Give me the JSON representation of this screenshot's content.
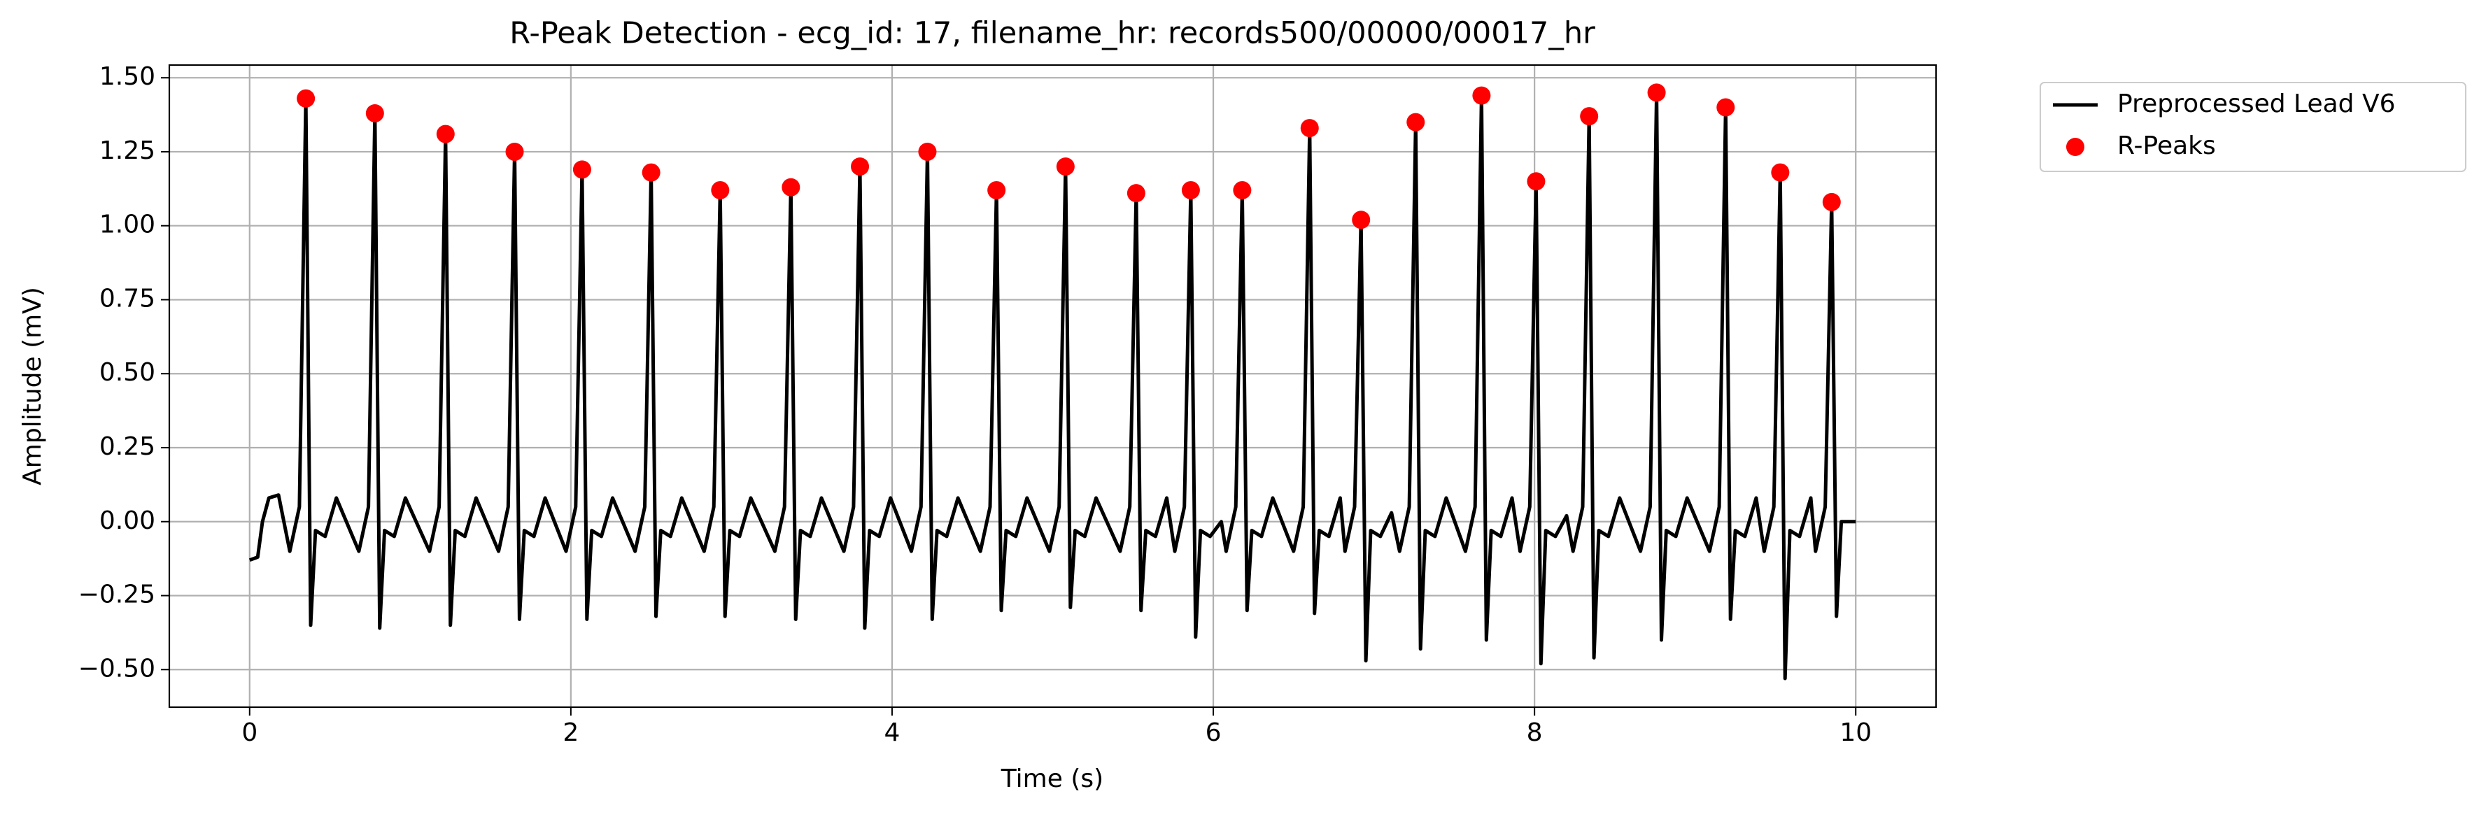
{
  "chart_data": {
    "type": "line",
    "title": "R-Peak Detection - ecg_id: 17, filename_hr: records500/00000/00017_hr",
    "xlabel": "Time (s)",
    "ylabel": "Amplitude (mV)",
    "xlim": [
      -0.5,
      10.5
    ],
    "ylim": [
      -0.627,
      1.543
    ],
    "xticks": [
      0,
      2,
      4,
      6,
      8,
      10
    ],
    "yticks": [
      {
        "value": -0.5,
        "label": "−0.50"
      },
      {
        "value": -0.25,
        "label": "−0.25"
      },
      {
        "value": 0,
        "label": "0.00"
      },
      {
        "value": 0.25,
        "label": "0.25"
      },
      {
        "value": 0.5,
        "label": "0.50"
      },
      {
        "value": 0.75,
        "label": "0.75"
      },
      {
        "value": 1,
        "label": "1.00"
      },
      {
        "value": 1.25,
        "label": "1.25"
      },
      {
        "value": 1.5,
        "label": "1.50"
      }
    ],
    "grid": true,
    "legend": "outside right",
    "series": [
      {
        "name": "Preprocessed Lead V6",
        "color": "#000000",
        "type": "line",
        "x": [
          0,
          0.05,
          0.08,
          0.12,
          0.18,
          0.25,
          0.31,
          0.35,
          0.38,
          0.41,
          0.47,
          0.54,
          0.68,
          0.74,
          0.78,
          0.81,
          0.84,
          0.9,
          0.97,
          1.12,
          1.18,
          1.22,
          1.25,
          1.28,
          1.34,
          1.41,
          1.55,
          1.61,
          1.65,
          1.68,
          1.71,
          1.77,
          1.84,
          1.97,
          2.03,
          2.07,
          2.1,
          2.13,
          2.19,
          2.26,
          2.4,
          2.46,
          2.5,
          2.53,
          2.56,
          2.62,
          2.69,
          2.83,
          2.89,
          2.93,
          2.96,
          2.99,
          3.05,
          3.12,
          3.27,
          3.33,
          3.37,
          3.4,
          3.43,
          3.49,
          3.56,
          3.7,
          3.76,
          3.8,
          3.83,
          3.86,
          3.92,
          3.99,
          4.12,
          4.18,
          4.22,
          4.25,
          4.28,
          4.34,
          4.41,
          4.55,
          4.61,
          4.65,
          4.68,
          4.71,
          4.77,
          4.84,
          4.98,
          5.04,
          5.08,
          5.11,
          5.14,
          5.2,
          5.27,
          5.42,
          5.48,
          5.52,
          5.55,
          5.58,
          5.64,
          5.71,
          5.76,
          5.82,
          5.86,
          5.89,
          5.92,
          5.98,
          6.05,
          6.08,
          6.14,
          6.18,
          6.21,
          6.24,
          6.3,
          6.37,
          6.5,
          6.56,
          6.6,
          6.63,
          6.66,
          6.72,
          6.79,
          6.82,
          6.88,
          6.92,
          6.95,
          6.98,
          7.04,
          7.11,
          7.16,
          7.22,
          7.26,
          7.29,
          7.32,
          7.38,
          7.45,
          7.57,
          7.63,
          7.67,
          7.7,
          7.73,
          7.79,
          7.86,
          7.91,
          7.97,
          8.01,
          8.04,
          8.07,
          8.13,
          8.2,
          8.24,
          8.3,
          8.34,
          8.37,
          8.4,
          8.46,
          8.53,
          8.66,
          8.72,
          8.76,
          8.79,
          8.82,
          8.88,
          8.95,
          9.09,
          9.15,
          9.19,
          9.22,
          9.25,
          9.31,
          9.38,
          9.43,
          9.49,
          9.53,
          9.56,
          9.59,
          9.65,
          9.72,
          9.75,
          9.81,
          9.85,
          9.88,
          9.91,
          10.0
        ],
        "values": [
          -0.13,
          -0.12,
          0.0,
          0.08,
          0.09,
          -0.1,
          0.05,
          1.43,
          -0.35,
          -0.03,
          -0.05,
          0.08,
          -0.1,
          0.05,
          1.38,
          -0.36,
          -0.03,
          -0.05,
          0.08,
          -0.1,
          0.05,
          1.31,
          -0.35,
          -0.03,
          -0.05,
          0.08,
          -0.1,
          0.05,
          1.25,
          -0.33,
          -0.03,
          -0.05,
          0.08,
          -0.1,
          0.05,
          1.19,
          -0.33,
          -0.03,
          -0.05,
          0.08,
          -0.1,
          0.05,
          1.18,
          -0.32,
          -0.03,
          -0.05,
          0.08,
          -0.1,
          0.05,
          1.12,
          -0.32,
          -0.03,
          -0.05,
          0.08,
          -0.1,
          0.05,
          1.13,
          -0.33,
          -0.03,
          -0.05,
          0.08,
          -0.1,
          0.05,
          1.2,
          -0.36,
          -0.03,
          -0.05,
          0.08,
          -0.1,
          0.05,
          1.25,
          -0.33,
          -0.03,
          -0.05,
          0.08,
          -0.1,
          0.05,
          1.12,
          -0.3,
          -0.03,
          -0.05,
          0.08,
          -0.1,
          0.05,
          1.2,
          -0.29,
          -0.03,
          -0.05,
          0.08,
          -0.1,
          0.05,
          1.11,
          -0.3,
          -0.03,
          -0.05,
          0.08,
          -0.1,
          0.05,
          1.12,
          -0.39,
          -0.03,
          -0.05,
          0.0,
          -0.1,
          0.05,
          1.12,
          -0.3,
          -0.03,
          -0.05,
          0.08,
          -0.1,
          0.05,
          1.33,
          -0.31,
          -0.03,
          -0.05,
          0.08,
          -0.1,
          0.05,
          1.02,
          -0.47,
          -0.03,
          -0.05,
          0.03,
          -0.1,
          0.05,
          1.35,
          -0.43,
          -0.03,
          -0.05,
          0.08,
          -0.1,
          0.05,
          1.44,
          -0.4,
          -0.03,
          -0.05,
          0.08,
          -0.1,
          0.05,
          1.15,
          -0.48,
          -0.03,
          -0.05,
          0.02,
          -0.1,
          0.05,
          1.37,
          -0.46,
          -0.03,
          -0.05,
          0.08,
          -0.1,
          0.05,
          1.45,
          -0.4,
          -0.03,
          -0.05,
          0.08,
          -0.1,
          0.05,
          1.4,
          -0.33,
          -0.03,
          -0.05,
          0.08,
          -0.1,
          0.05,
          1.18,
          -0.53,
          -0.03,
          -0.05,
          0.08,
          -0.1,
          0.05,
          1.08,
          -0.32,
          0.0,
          0.0
        ]
      },
      {
        "name": "R-Peaks",
        "color": "#ff0000",
        "type": "scatter",
        "x": [
          0.35,
          0.78,
          1.22,
          1.65,
          2.07,
          2.5,
          2.93,
          3.37,
          3.8,
          4.22,
          4.65,
          5.08,
          5.52,
          5.86,
          6.18,
          6.6,
          6.92,
          7.26,
          7.67,
          8.01,
          8.34,
          8.76,
          9.19,
          9.53,
          9.85
        ],
        "values": [
          1.43,
          1.38,
          1.31,
          1.25,
          1.19,
          1.18,
          1.12,
          1.13,
          1.2,
          1.25,
          1.12,
          1.2,
          1.11,
          1.12,
          1.12,
          1.33,
          1.02,
          1.35,
          1.44,
          1.15,
          1.37,
          1.45,
          1.4,
          1.18,
          1.08
        ]
      }
    ]
  }
}
